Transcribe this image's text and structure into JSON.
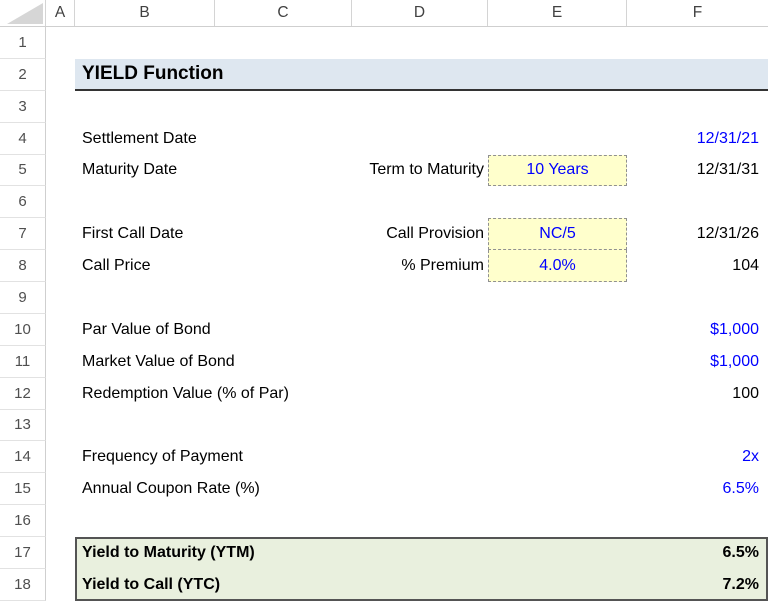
{
  "sheet": {
    "column_headers": [
      "A",
      "B",
      "C",
      "D",
      "E",
      "F"
    ],
    "row_numbers": [
      "1",
      "2",
      "3",
      "4",
      "5",
      "6",
      "7",
      "8",
      "9",
      "10",
      "11",
      "12",
      "13",
      "14",
      "15",
      "16",
      "17",
      "18"
    ]
  },
  "cells": {
    "title": "YIELD Function",
    "b4": "Settlement Date",
    "f4": "12/31/21",
    "b5": "Maturity Date",
    "d5": "Term to Maturity",
    "e5": "10 Years",
    "f5": "12/31/31",
    "b7": "First Call Date",
    "d7": "Call Provision",
    "e7": "NC/5",
    "f7": "12/31/26",
    "b8": "Call Price",
    "d8": "% Premium",
    "e8": "4.0%",
    "f8": "104",
    "b10": "Par Value of Bond",
    "f10": "$1,000",
    "b11": "Market Value of Bond",
    "f11": "$1,000",
    "b12": "Redemption Value (% of Par)",
    "f12": "100",
    "b14": "Frequency of Payment",
    "f14": "2x",
    "b15": "Annual Coupon Rate (%)",
    "f15": "6.5%",
    "b17": "Yield to Maturity (YTM)",
    "f17": "6.5%",
    "b18": "Yield to Call (YTC)",
    "f18": "7.2%"
  },
  "colors": {
    "title_bg": "#dee7f0",
    "input_bg": "#ffffcc",
    "input_text": "#0000ff",
    "result_bg": "#e9f0de",
    "result_border": "#545454",
    "grid_line": "#d4d4d4"
  }
}
